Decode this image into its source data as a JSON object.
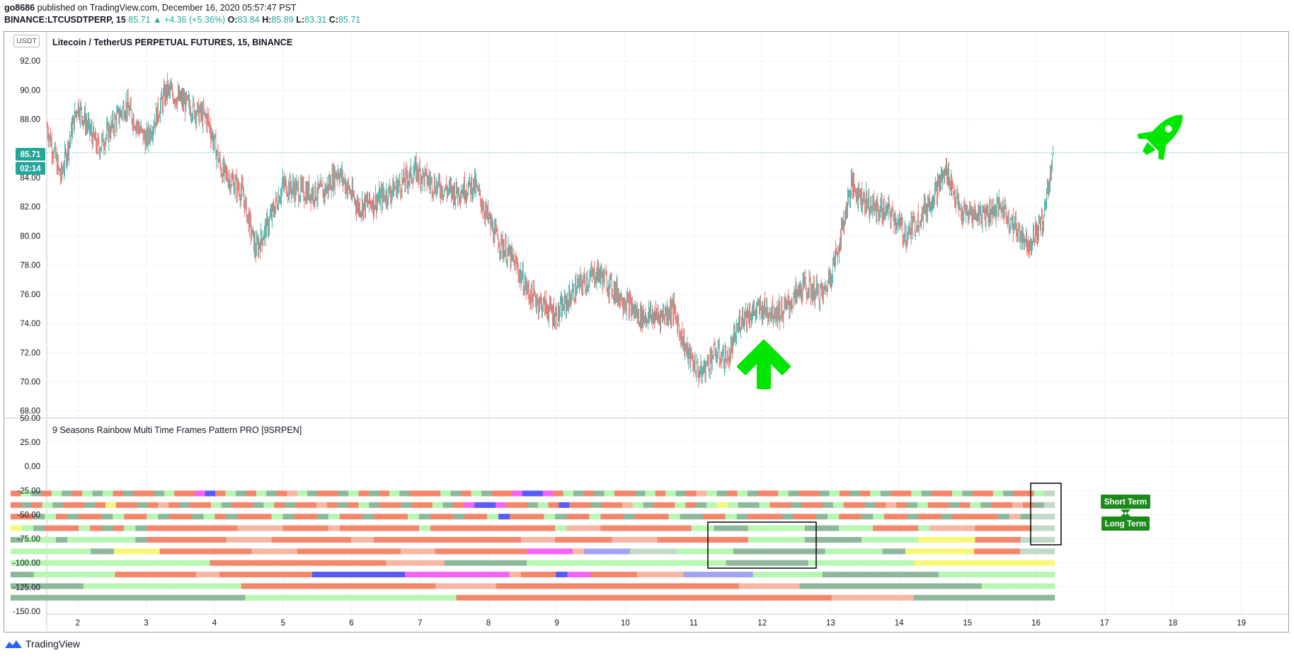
{
  "header": {
    "author": "go8686",
    "published": "published on TradingView.com, December 16, 2020 05:57:47 PST",
    "symbol": "BINANCE:LTCUSDTPERP, 15",
    "last": "85.71",
    "change": "+4.36 (+5.36%)",
    "o_label": "O:",
    "o": "83.84",
    "h_label": "H:",
    "h": "85.89",
    "l_label": "L:",
    "l": "83.31",
    "c_label": "C:",
    "c": "85.71"
  },
  "price_panel": {
    "title": "Litecoin / TetherUS PERPETUAL FUTURES, 15, BINANCE",
    "currency_badge": "USDT",
    "price_tag": "85.71",
    "countdown_tag": "02:14"
  },
  "indicator_panel": {
    "title": "9 Seasons Rainbow Multi Time Frames Pattern PRO [9SRPEN]",
    "label_short": "Short Term",
    "label_long": "Long Term"
  },
  "footer": {
    "brand": "TradingView"
  },
  "colors": {
    "up": "#26a69a",
    "down": "#ef5350",
    "rocket": "#00e600",
    "label_bg": "#1b8a1b",
    "tag": "#26a69a"
  },
  "chart_data": [
    {
      "type": "candlestick",
      "title": "Litecoin / TetherUS PERPETUAL FUTURES, 15, BINANCE",
      "x_ticks": [
        "2",
        "3",
        "4",
        "5",
        "6",
        "7",
        "8",
        "9",
        "10",
        "11",
        "12",
        "13",
        "14",
        "15",
        "16",
        "17",
        "18",
        "19"
      ],
      "y_ticks": [
        68,
        70,
        72,
        74,
        76,
        78,
        80,
        82,
        84,
        88,
        90,
        92
      ],
      "ylim": [
        67.5,
        94
      ],
      "last_price": 85.71,
      "close_path": [
        {
          "x": 1.55,
          "y": 87.5
        },
        {
          "x": 1.75,
          "y": 84.0
        },
        {
          "x": 2.0,
          "y": 89.0
        },
        {
          "x": 2.3,
          "y": 86.0
        },
        {
          "x": 2.7,
          "y": 89.0
        },
        {
          "x": 3.0,
          "y": 86.5
        },
        {
          "x": 3.3,
          "y": 90.0
        },
        {
          "x": 3.6,
          "y": 89.0
        },
        {
          "x": 3.9,
          "y": 88.0
        },
        {
          "x": 4.1,
          "y": 84.5
        },
        {
          "x": 4.4,
          "y": 83.0
        },
        {
          "x": 4.6,
          "y": 79.0
        },
        {
          "x": 4.8,
          "y": 81.0
        },
        {
          "x": 5.0,
          "y": 83.5
        },
        {
          "x": 5.3,
          "y": 83.0
        },
        {
          "x": 5.6,
          "y": 83.0
        },
        {
          "x": 5.8,
          "y": 84.5
        },
        {
          "x": 6.1,
          "y": 82.0
        },
        {
          "x": 6.4,
          "y": 82.5
        },
        {
          "x": 6.7,
          "y": 83.5
        },
        {
          "x": 6.95,
          "y": 84.5
        },
        {
          "x": 7.2,
          "y": 83.5
        },
        {
          "x": 7.5,
          "y": 83.0
        },
        {
          "x": 7.8,
          "y": 83.5
        },
        {
          "x": 8.1,
          "y": 80.0
        },
        {
          "x": 8.4,
          "y": 78.0
        },
        {
          "x": 8.6,
          "y": 76.0
        },
        {
          "x": 9.0,
          "y": 74.5
        },
        {
          "x": 9.3,
          "y": 76.5
        },
        {
          "x": 9.6,
          "y": 77.5
        },
        {
          "x": 9.9,
          "y": 76.0
        },
        {
          "x": 10.2,
          "y": 74.5
        },
        {
          "x": 10.5,
          "y": 74.5
        },
        {
          "x": 10.7,
          "y": 75.0
        },
        {
          "x": 10.9,
          "y": 72.0
        },
        {
          "x": 11.1,
          "y": 70.5
        },
        {
          "x": 11.3,
          "y": 72.0
        },
        {
          "x": 11.5,
          "y": 71.5
        },
        {
          "x": 11.7,
          "y": 74.5
        },
        {
          "x": 12.0,
          "y": 75.0
        },
        {
          "x": 12.3,
          "y": 74.8
        },
        {
          "x": 12.6,
          "y": 76.5
        },
        {
          "x": 12.9,
          "y": 76.0
        },
        {
          "x": 13.1,
          "y": 79.0
        },
        {
          "x": 13.3,
          "y": 83.5
        },
        {
          "x": 13.6,
          "y": 82.0
        },
        {
          "x": 13.9,
          "y": 81.5
        },
        {
          "x": 14.1,
          "y": 80.0
        },
        {
          "x": 14.4,
          "y": 82.0
        },
        {
          "x": 14.7,
          "y": 84.5
        },
        {
          "x": 14.9,
          "y": 81.5
        },
        {
          "x": 15.2,
          "y": 81.5
        },
        {
          "x": 15.5,
          "y": 82.0
        },
        {
          "x": 15.7,
          "y": 80.5
        },
        {
          "x": 15.9,
          "y": 79.5
        },
        {
          "x": 16.1,
          "y": 81.0
        },
        {
          "x": 16.25,
          "y": 85.71
        }
      ]
    },
    {
      "type": "heatmap",
      "title": "9 Seasons Rainbow Multi Time Frames Pattern PRO [9SRPEN]",
      "y_ticks": [
        50,
        25,
        0,
        -25,
        -50,
        -75,
        -100,
        -125,
        -150
      ],
      "ylim": [
        -153,
        50
      ],
      "row_levels": [
        -28,
        -40,
        -52,
        -64,
        -76,
        -88,
        -100,
        -112,
        -124,
        -136
      ],
      "x_range": [
        1.02,
        16.27
      ],
      "palette": {
        "R": "#f4866a",
        "P": "#f7b7a3",
        "G": "#b7f7b1",
        "D": "#8db89b",
        "Y": "#f7f778",
        "M": "#f563f5",
        "B": "#5a5af5",
        "L": "#a3a3f5",
        "W": "#ffffff",
        "S": "#c3d9c7"
      },
      "rows": [
        "RGDRGDRGDGRDRRDGRRMBRGDRGDRPGDRRDGRDRGDRRRGDRGDRRMBBMRGDRDGRRDGRGDRPGDRGDRRGDRRDGRDRGDRRGDRRGDRRGDRRGS",
        "RDRGDRRDRYRRDRPRDRRGDRRDGRDRRPRDRGDRRDRRGDRMBBMRRDGRBRRDRRPGDRRGRDGYGDDGRRDRRDGRRDRPRDGRRDRGDRRPRDS",
        "RRDGRDRRDGRRGDRRDGRDRRRGDRRDGRRDRRRGDRRDRRGBRRRGDRRGRRDRRRGDDRRGDRRRDRRDGRRDGRRDRRDRRRRDPDSS",
        "YGDRRRGRDRGDRRRRRRRRPPPPRRRRPRRRRRRRGRRRRRRRRRRRGPPPRRRRRRRRGGDDDGGGGGDDDGGGRRRRGPPPPRRRRRSS",
        "DGGGDGGGGGGDRRRRRRRPPPPRRRRRRRPPRRRRRRRRRRRRRPPPRRRRRPPPPRRRRRRRRGGGGGDDDDDGGGGGYYYYYRRRRSSS",
        "GGGGGGGDDYYYYRRRRRRRRPPPPRRRRRRRRRPPPRRRRRRRRMMMMPLLLLSSSSGGGGGDDDDDDDDGGGGGDDYYYYYYRRRRSSS",
        "GGGGGGGGGGGGGGGGGRRRRRRRRRRRRRRRPPPPPDDDDDDDGGGGGGGGGGGGGGGGGDDDDDDDGGGGGGGGGYYYYYYYYYYYY",
        "DDGGGGGGGRRRRRRRPPRRRRRRRRBBBBBBBBMMMMMMMMMPRRRBMMRRRRPPPPLLLLLLGGGGGGDDDDDDDDDDGGGGGGGGGG",
        "DDDDDDGGGGGGGGGGGGGRRRRRRRRRRRRRRRRPPPPPRRRRRRRRRRRRRRRRRRRRPPPPPDDDDDDDDDDDDDDDGGGGGG",
        "DDDDDDDDDDDDDDDDDDDDGGGGGGGGGGGGGGGGGGRRRRRRRRRRRRRRRRRRRRRRRRRRRRRRRRPPPPPPPDDDDDDDDDDDD"
      ]
    }
  ]
}
